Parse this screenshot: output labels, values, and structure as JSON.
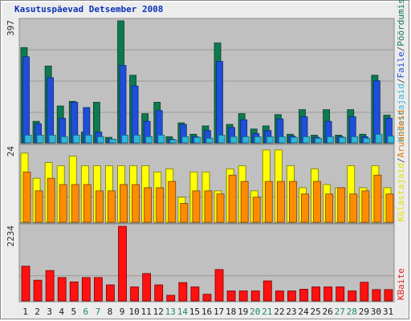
{
  "title": "Kasutuspäevad Detsember 2008",
  "chart_data": [
    {
      "type": "bar",
      "panel": "top",
      "ymax_label": "397",
      "ylim": [
        0,
        397
      ],
      "categories": [
        "1",
        "2",
        "3",
        "4",
        "5",
        "6",
        "7",
        "8",
        "9",
        "10",
        "11",
        "12",
        "13",
        "14",
        "15",
        "16",
        "17",
        "18",
        "19",
        "20",
        "21",
        "22",
        "23",
        "24",
        "25",
        "26",
        "27",
        "28",
        "29",
        "30",
        "31"
      ],
      "weekend_categories": [
        "6",
        "7",
        "13",
        "14",
        "20",
        "21",
        "27",
        "28"
      ],
      "grid": true,
      "legend_labels": [
        {
          "text": "Pöördumisi",
          "color": "#0d7a4f"
        },
        {
          "text": "Faile",
          "color": "#1f4fd8"
        },
        {
          "text": "Külastajaid",
          "color": "#2db8d8"
        }
      ],
      "separator": "/",
      "series": [
        {
          "name": "Pöördumisi",
          "color": "#0d7a4f",
          "values": [
            310,
            70,
            250,
            120,
            135,
            35,
            132,
            18,
            397,
            220,
            95,
            132,
            20,
            65,
            28,
            55,
            325,
            60,
            95,
            45,
            55,
            92,
            28,
            108,
            25,
            108,
            25,
            108,
            28,
            220,
            90
          ]
        },
        {
          "name": "Faile",
          "color": "#1f4fd8",
          "values": [
            280,
            62,
            212,
            80,
            132,
            115,
            35,
            12,
            252,
            185,
            70,
            105,
            12,
            60,
            20,
            40,
            265,
            50,
            75,
            30,
            40,
            78,
            22,
            85,
            18,
            70,
            20,
            85,
            20,
            202,
            80
          ]
        },
        {
          "name": "Külastajaid",
          "color": "#2db8d8",
          "values": [
            25,
            25,
            25,
            20,
            25,
            25,
            20,
            12,
            25,
            25,
            20,
            25,
            10,
            20,
            18,
            15,
            25,
            20,
            20,
            20,
            20,
            20,
            18,
            20,
            15,
            20,
            18,
            20,
            15,
            28,
            22
          ]
        }
      ]
    },
    {
      "type": "bar",
      "panel": "middle",
      "ymax_label": "24",
      "ylim": [
        0,
        24
      ],
      "legend_labels": [
        {
          "text": "Aruandeid",
          "color": "#e07800"
        },
        {
          "text": "Külastajaid",
          "color": "#e0e000"
        }
      ],
      "separator": "/",
      "series": [
        {
          "name": "Külastajaid",
          "color": "#ffff00",
          "values": [
            22,
            14,
            19,
            18,
            21,
            18,
            18,
            18,
            18,
            18,
            18,
            16,
            17,
            8,
            16,
            16,
            10,
            17,
            18,
            10,
            23,
            23,
            18,
            11,
            17,
            12,
            11,
            18,
            11,
            18,
            11
          ]
        },
        {
          "name": "Aruandeid",
          "color": "#ff8c00",
          "values": [
            16,
            10,
            14,
            12,
            12,
            12,
            10,
            10,
            12,
            12,
            11,
            11,
            13,
            6,
            10,
            10,
            9,
            15,
            13,
            8,
            13,
            13,
            13,
            9,
            13,
            9,
            11,
            9,
            10,
            15,
            9
          ]
        }
      ]
    },
    {
      "type": "bar",
      "panel": "bottom",
      "ymax_label": "2234",
      "ylim": [
        0,
        2234
      ],
      "legend_labels": [
        {
          "text": "KBaite",
          "color": "#e02020"
        }
      ],
      "series": [
        {
          "name": "KBaite",
          "color": "#ff1111",
          "values": [
            1040,
            620,
            910,
            700,
            570,
            700,
            700,
            480,
            2234,
            420,
            820,
            480,
            170,
            550,
            420,
            200,
            940,
            300,
            300,
            300,
            600,
            300,
            300,
            350,
            420,
            420,
            420,
            300,
            560,
            340,
            340
          ]
        }
      ]
    }
  ]
}
